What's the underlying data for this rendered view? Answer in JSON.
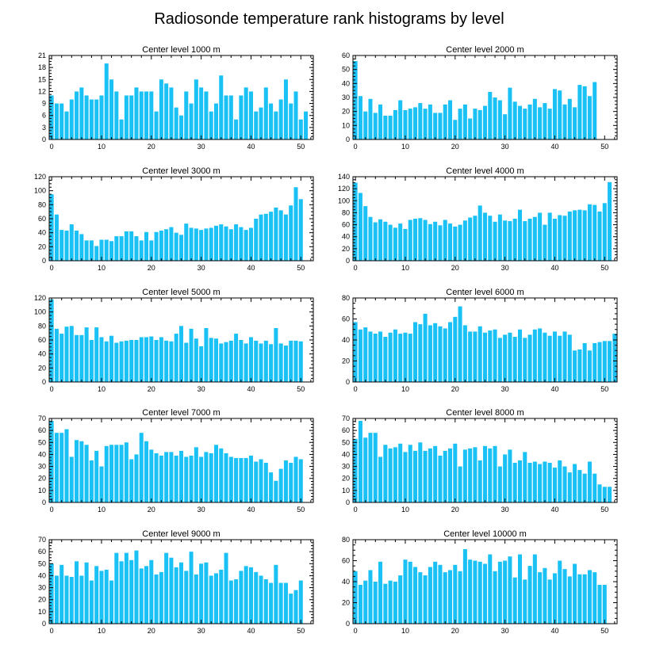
{
  "figure": {
    "title": "Radiosonde temperature rank histograms by level"
  },
  "style": {
    "bar_color": "#19c1f5"
  },
  "chart_data": [
    {
      "type": "bar",
      "title": "Center level 1000 m",
      "xlim": [
        -0.5,
        52.5
      ],
      "ylim": [
        0,
        21
      ],
      "xticks": [
        0,
        10,
        20,
        30,
        40,
        50
      ],
      "yticks": [
        0,
        3,
        6,
        9,
        12,
        15,
        18,
        21
      ],
      "values": [
        11,
        9,
        9,
        7,
        10,
        12,
        13,
        11,
        10,
        10,
        11,
        19,
        15,
        12,
        5,
        11,
        11,
        13,
        12,
        12,
        12,
        7,
        15,
        14,
        13,
        8,
        6,
        12,
        9,
        15,
        13,
        12,
        7,
        9,
        16,
        11,
        11,
        5,
        11,
        13,
        12,
        7,
        8,
        13,
        9,
        7,
        10,
        15,
        9,
        12,
        5,
        7
      ]
    },
    {
      "type": "bar",
      "title": "Center level 2000 m",
      "xlim": [
        -0.5,
        52.5
      ],
      "ylim": [
        0,
        60
      ],
      "xticks": [
        0,
        10,
        20,
        30,
        40,
        50
      ],
      "yticks": [
        0,
        10,
        20,
        30,
        40,
        50,
        60
      ],
      "values": [
        56,
        31,
        20,
        29,
        19,
        25,
        17,
        17,
        21,
        28,
        21,
        22,
        23,
        26,
        22,
        25,
        19,
        19,
        25,
        28,
        14,
        22,
        25,
        15,
        22,
        21,
        24,
        34,
        30,
        28,
        18,
        37,
        27,
        24,
        22,
        25,
        29,
        23,
        26,
        22,
        36,
        35,
        25,
        29,
        23,
        39,
        38,
        31,
        41
      ]
    },
    {
      "type": "bar",
      "title": "Center level 3000 m",
      "xlim": [
        -0.5,
        52.5
      ],
      "ylim": [
        0,
        120
      ],
      "xticks": [
        0,
        10,
        20,
        30,
        40,
        50
      ],
      "yticks": [
        0,
        20,
        40,
        60,
        80,
        100,
        120
      ],
      "values": [
        95,
        66,
        44,
        43,
        52,
        43,
        38,
        29,
        29,
        21,
        30,
        30,
        28,
        35,
        35,
        42,
        42,
        35,
        29,
        41,
        29,
        41,
        43,
        45,
        48,
        40,
        37,
        53,
        47,
        46,
        44,
        46,
        47,
        50,
        52,
        49,
        45,
        52,
        48,
        44,
        47,
        60,
        66,
        67,
        70,
        76,
        72,
        66,
        79,
        105,
        88
      ]
    },
    {
      "type": "bar",
      "title": "Center level 4000 m",
      "xlim": [
        -0.5,
        52.5
      ],
      "ylim": [
        0,
        140
      ],
      "xticks": [
        0,
        10,
        20,
        30,
        40,
        50
      ],
      "yticks": [
        0,
        20,
        40,
        60,
        80,
        100,
        120,
        140
      ],
      "values": [
        130,
        113,
        91,
        73,
        64,
        69,
        65,
        60,
        55,
        62,
        53,
        68,
        70,
        71,
        68,
        61,
        65,
        59,
        68,
        62,
        57,
        60,
        67,
        72,
        75,
        92,
        80,
        75,
        65,
        77,
        67,
        66,
        70,
        85,
        66,
        70,
        73,
        80,
        60,
        80,
        70,
        76,
        75,
        82,
        84,
        85,
        84,
        94,
        93,
        82,
        96,
        131
      ]
    },
    {
      "type": "bar",
      "title": "Center level 5000 m",
      "xlim": [
        -0.5,
        52.5
      ],
      "ylim": [
        0,
        120
      ],
      "xticks": [
        0,
        10,
        20,
        30,
        40,
        50
      ],
      "yticks": [
        0,
        20,
        40,
        60,
        80,
        100,
        120
      ],
      "values": [
        118,
        76,
        69,
        79,
        80,
        67,
        67,
        78,
        60,
        78,
        64,
        58,
        66,
        56,
        58,
        59,
        60,
        60,
        64,
        64,
        65,
        60,
        64,
        59,
        58,
        69,
        80,
        56,
        76,
        62,
        51,
        77,
        63,
        62,
        55,
        57,
        59,
        69,
        60,
        55,
        64,
        59,
        55,
        59,
        54,
        77,
        55,
        52,
        59,
        59,
        58
      ]
    },
    {
      "type": "bar",
      "title": "Center level 6000 m",
      "xlim": [
        -0.5,
        52.5
      ],
      "ylim": [
        0,
        80
      ],
      "xticks": [
        0,
        10,
        20,
        30,
        40,
        50
      ],
      "yticks": [
        0,
        20,
        40,
        60,
        80
      ],
      "values": [
        57,
        50,
        52,
        48,
        46,
        48,
        43,
        47,
        50,
        46,
        47,
        46,
        57,
        55,
        65,
        54,
        56,
        53,
        51,
        57,
        62,
        72,
        54,
        48,
        48,
        53,
        47,
        49,
        50,
        42,
        45,
        47,
        43,
        50,
        42,
        45,
        50,
        51,
        47,
        44,
        48,
        44,
        48,
        45,
        30,
        31,
        37,
        30,
        37,
        38,
        39,
        39,
        46
      ]
    },
    {
      "type": "bar",
      "title": "Center level 7000 m",
      "xlim": [
        -0.5,
        52.5
      ],
      "ylim": [
        0,
        70
      ],
      "xticks": [
        0,
        10,
        20,
        30,
        40,
        50
      ],
      "yticks": [
        0,
        10,
        20,
        30,
        40,
        50,
        60,
        70
      ],
      "values": [
        68,
        58,
        58,
        61,
        38,
        52,
        51,
        48,
        35,
        43,
        30,
        47,
        48,
        48,
        48,
        50,
        36,
        40,
        58,
        51,
        44,
        41,
        39,
        42,
        42,
        39,
        43,
        38,
        39,
        46,
        38,
        42,
        41,
        48,
        45,
        41,
        38,
        37,
        37,
        37,
        39,
        34,
        36,
        33,
        25,
        18,
        28,
        35,
        33,
        38,
        36
      ]
    },
    {
      "type": "bar",
      "title": "Center level 8000 m",
      "xlim": [
        -0.5,
        52.5
      ],
      "ylim": [
        0,
        70
      ],
      "xticks": [
        0,
        10,
        20,
        30,
        40,
        50
      ],
      "yticks": [
        0,
        10,
        20,
        30,
        40,
        50,
        60,
        70
      ],
      "values": [
        53,
        68,
        54,
        58,
        58,
        38,
        48,
        45,
        46,
        49,
        42,
        48,
        43,
        50,
        43,
        45,
        47,
        39,
        43,
        45,
        49,
        30,
        44,
        45,
        46,
        35,
        47,
        45,
        47,
        30,
        40,
        44,
        33,
        35,
        42,
        33,
        34,
        32,
        34,
        33,
        29,
        35,
        30,
        25,
        32,
        27,
        24,
        34,
        24,
        15,
        13,
        13
      ]
    },
    {
      "type": "bar",
      "title": "Center level 9000 m",
      "xlim": [
        -0.5,
        52.5
      ],
      "ylim": [
        0,
        70
      ],
      "xticks": [
        0,
        10,
        20,
        30,
        40,
        50
      ],
      "yticks": [
        0,
        10,
        20,
        30,
        40,
        50,
        60,
        70
      ],
      "values": [
        50,
        40,
        49,
        40,
        39,
        52,
        40,
        51,
        36,
        48,
        44,
        45,
        36,
        59,
        52,
        59,
        53,
        61,
        46,
        48,
        53,
        41,
        43,
        59,
        55,
        47,
        51,
        44,
        60,
        41,
        50,
        51,
        40,
        42,
        45,
        59,
        36,
        37,
        44,
        48,
        47,
        43,
        40,
        37,
        34,
        49,
        34,
        34,
        25,
        28,
        36
      ]
    },
    {
      "type": "bar",
      "title": "Center level 10000 m",
      "xlim": [
        -0.5,
        52.5
      ],
      "ylim": [
        0,
        80
      ],
      "xticks": [
        0,
        10,
        20,
        30,
        40,
        50
      ],
      "yticks": [
        0,
        20,
        40,
        60,
        80
      ],
      "values": [
        50,
        37,
        41,
        51,
        40,
        59,
        38,
        41,
        40,
        46,
        61,
        59,
        54,
        49,
        46,
        54,
        59,
        56,
        49,
        51,
        56,
        50,
        71,
        61,
        60,
        59,
        57,
        66,
        50,
        59,
        60,
        64,
        44,
        66,
        42,
        55,
        66,
        49,
        53,
        42,
        48,
        60,
        52,
        45,
        57,
        47,
        47,
        51,
        49,
        37,
        37
      ]
    }
  ]
}
